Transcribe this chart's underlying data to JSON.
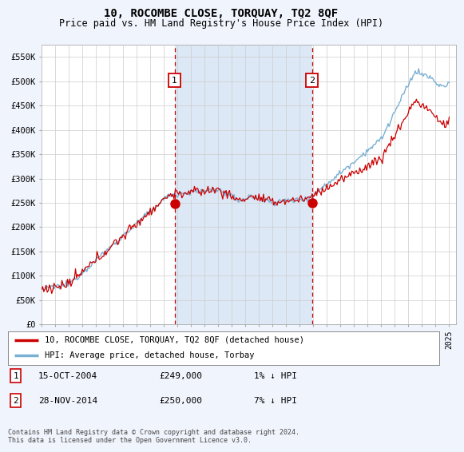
{
  "title": "10, ROCOMBE CLOSE, TORQUAY, TQ2 8QF",
  "subtitle": "Price paid vs. HM Land Registry's House Price Index (HPI)",
  "background_color": "#f0f4fc",
  "plot_bg_color": "#ffffff",
  "shade_color": "#dce8f5",
  "ylim": [
    0,
    575000
  ],
  "yticks": [
    0,
    50000,
    100000,
    150000,
    200000,
    250000,
    300000,
    350000,
    400000,
    450000,
    500000,
    550000
  ],
  "ytick_labels": [
    "£0",
    "£50K",
    "£100K",
    "£150K",
    "£200K",
    "£250K",
    "£300K",
    "£350K",
    "£400K",
    "£450K",
    "£500K",
    "£550K"
  ],
  "sale1_x": 2004.79,
  "sale1_y": 249000,
  "sale1_label": "1",
  "sale1_date": "15-OCT-2004",
  "sale1_price": "£249,000",
  "sale1_hpi": "1% ↓ HPI",
  "sale2_x": 2014.91,
  "sale2_y": 250000,
  "sale2_label": "2",
  "sale2_date": "28-NOV-2014",
  "sale2_price": "£250,000",
  "sale2_hpi": "7% ↓ HPI",
  "legend_line1": "10, ROCOMBE CLOSE, TORQUAY, TQ2 8QF (detached house)",
  "legend_line2": "HPI: Average price, detached house, Torbay",
  "footer": "Contains HM Land Registry data © Crown copyright and database right 2024.\nThis data is licensed under the Open Government Licence v3.0.",
  "line_color_red": "#cc0000",
  "line_color_blue": "#7ab0d4",
  "grid_color": "#cccccc",
  "marker_box_color": "#cc0000",
  "xlim_left": 1995,
  "xlim_right": 2025.5
}
